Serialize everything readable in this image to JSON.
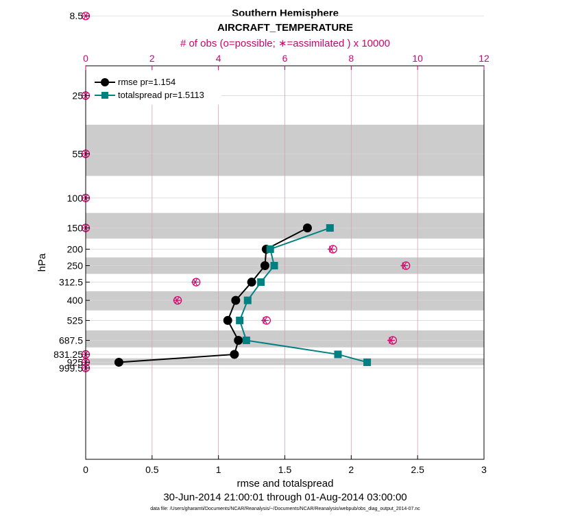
{
  "colors": {
    "rmse": "#000000",
    "spread": "#008080",
    "obs": "#d6006b",
    "band": "#cccccc",
    "grid_h": "#d9d9d9",
    "grid_v": "#d6a0b8"
  },
  "chart_data": {
    "type": "line",
    "title": "Southern Hemisphere",
    "subtitle": "AIRCRAFT_TEMPERATURE",
    "xlabel": "rmse and totalspread",
    "ylabel": "hPa",
    "top_xlabel": "# of obs (o=possible; ∗=assimilated ) x 10000",
    "date_range": "30-Jun-2014 21:00:01 through 01-Aug-2014 03:00:00",
    "footnote": "data file: /Users/gharamti/Documents/NCAR/Reanalysis/~/Documents/NCAR/Reanalysis/webpub/obs_diag_output_2014-07.nc",
    "xlim": [
      0,
      3
    ],
    "x_ticks": [
      "0",
      "0.5",
      "1",
      "1.5",
      "2",
      "2.5",
      "3"
    ],
    "top_xlim": [
      0,
      12
    ],
    "top_ticks": [
      "0",
      "2",
      "4",
      "6",
      "8",
      "10",
      "12"
    ],
    "levels": [
      "8.5",
      "25",
      "55",
      "100",
      "150",
      "200",
      "250",
      "312.5",
      "400",
      "525",
      "687.5",
      "831.25",
      "925",
      "999.5"
    ],
    "level_values": [
      8.5,
      25,
      55,
      100,
      150,
      200,
      250,
      312.5,
      400,
      525,
      687.5,
      831.25,
      925,
      999.5
    ],
    "series": [
      {
        "name": "rmse pr=1.154",
        "marker": "circle",
        "points": [
          {
            "level": 150,
            "value": 1.67
          },
          {
            "level": 200,
            "value": 1.36
          },
          {
            "level": 250,
            "value": 1.35
          },
          {
            "level": 312.5,
            "value": 1.25
          },
          {
            "level": 400,
            "value": 1.13
          },
          {
            "level": 525,
            "value": 1.07
          },
          {
            "level": 687.5,
            "value": 1.15
          },
          {
            "level": 831.25,
            "value": 1.12
          },
          {
            "level": 925,
            "value": 0.25
          }
        ]
      },
      {
        "name": "totalspread pr=1.5113",
        "marker": "square",
        "points": [
          {
            "level": 150,
            "value": 1.84
          },
          {
            "level": 200,
            "value": 1.39
          },
          {
            "level": 250,
            "value": 1.42
          },
          {
            "level": 312.5,
            "value": 1.32
          },
          {
            "level": 400,
            "value": 1.22
          },
          {
            "level": 525,
            "value": 1.16
          },
          {
            "level": 687.5,
            "value": 1.21
          },
          {
            "level": 831.25,
            "value": 1.9
          },
          {
            "level": 925,
            "value": 2.12
          }
        ]
      }
    ],
    "obs_counts": [
      {
        "level": 8.5,
        "possible": 0,
        "assimilated": 0
      },
      {
        "level": 25,
        "possible": 0,
        "assimilated": 0
      },
      {
        "level": 55,
        "possible": 0,
        "assimilated": 0
      },
      {
        "level": 100,
        "possible": 0,
        "assimilated": 0
      },
      {
        "level": 150,
        "possible": 0,
        "assimilated": 0
      },
      {
        "level": 200,
        "possible": 7.45,
        "assimilated": 7.4
      },
      {
        "level": 250,
        "possible": 9.65,
        "assimilated": 9.6
      },
      {
        "level": 312.5,
        "possible": 3.33,
        "assimilated": 3.3
      },
      {
        "level": 400,
        "possible": 2.77,
        "assimilated": 2.75
      },
      {
        "level": 525,
        "possible": 5.45,
        "assimilated": 5.4
      },
      {
        "level": 687.5,
        "possible": 9.25,
        "assimilated": 9.2
      },
      {
        "level": 831.25,
        "possible": 0,
        "assimilated": 0
      },
      {
        "level": 925,
        "possible": 0,
        "assimilated": 0
      },
      {
        "level": 999.5,
        "possible": 0,
        "assimilated": 0
      }
    ],
    "legend_location": "top-left"
  }
}
